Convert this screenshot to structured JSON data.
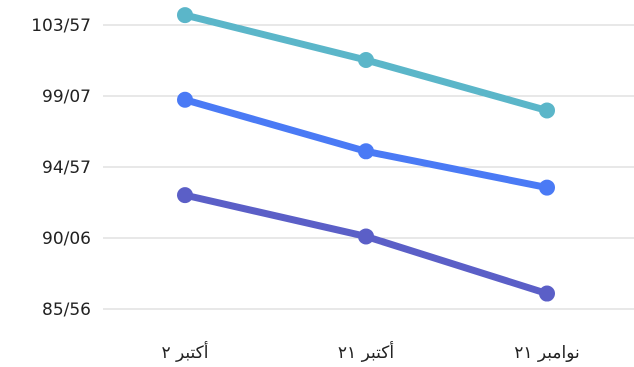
{
  "chart_data": {
    "type": "line",
    "categories": [
      "أكتبر ٢",
      "أكتبر ٢١",
      "نوامبر ٢١"
    ],
    "y_ticks": [
      "85/56",
      "90/06",
      "94/57",
      "99/07",
      "103/57"
    ],
    "ylim": [
      85.56,
      103.57
    ],
    "grid": true,
    "legend": "none",
    "series": [
      {
        "values": [
          104.2,
          101.35,
          98.15
        ],
        "color": "#5bb6c9"
      },
      {
        "values": [
          98.83,
          95.56,
          93.26
        ],
        "color": "#4a7af5"
      },
      {
        "values": [
          92.78,
          90.16,
          86.54
        ],
        "color": "#5b5fc7"
      }
    ]
  }
}
